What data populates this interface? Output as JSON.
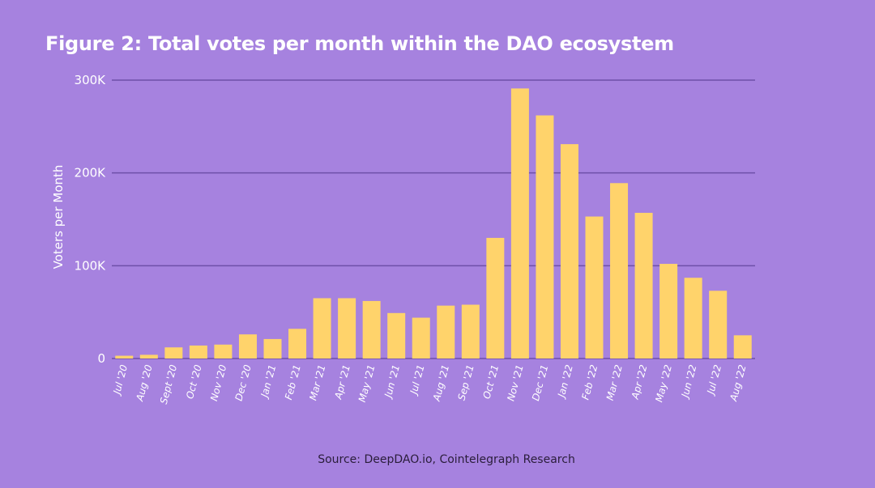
{
  "chart_data": {
    "type": "bar",
    "title": "Figure 2: Total votes per month within the DAO ecosystem",
    "ylabel": "Voters per Month",
    "xlabel": "",
    "categories": [
      "Jul '20",
      "Aug '20",
      "Sept '20",
      "Oct '20",
      "Nov '20",
      "Dec '20",
      "Jan '21",
      "Feb '21",
      "Mar '21",
      "Apr '21",
      "May '21",
      "Jun '21",
      "Jul '21",
      "Aug '21",
      "Sep '21",
      "Oct '21",
      "Nov '21",
      "Dec '21",
      "Jan '22",
      "Feb '22",
      "Mar '22",
      "Apr '22",
      "May '22",
      "Jun '22",
      "Jul '22",
      "Aug '22"
    ],
    "values": [
      3000,
      4000,
      12000,
      14000,
      15000,
      26000,
      21000,
      32000,
      65000,
      65000,
      62000,
      49000,
      44000,
      57000,
      58000,
      130000,
      291000,
      262000,
      231000,
      153000,
      189000,
      157000,
      102000,
      87000,
      73000,
      25000
    ],
    "ylim": [
      0,
      300000
    ],
    "yticks": [
      {
        "value": 0,
        "label": "0"
      },
      {
        "value": 100000,
        "label": "100K"
      },
      {
        "value": 200000,
        "label": "200K"
      },
      {
        "value": 300000,
        "label": "300K"
      }
    ],
    "colors": {
      "bar": "#ffd36b",
      "grid": "#6e4fa8",
      "axis_text": "#ffffff"
    },
    "source": "Source: DeepDAO.io, Cointelegraph Research"
  }
}
